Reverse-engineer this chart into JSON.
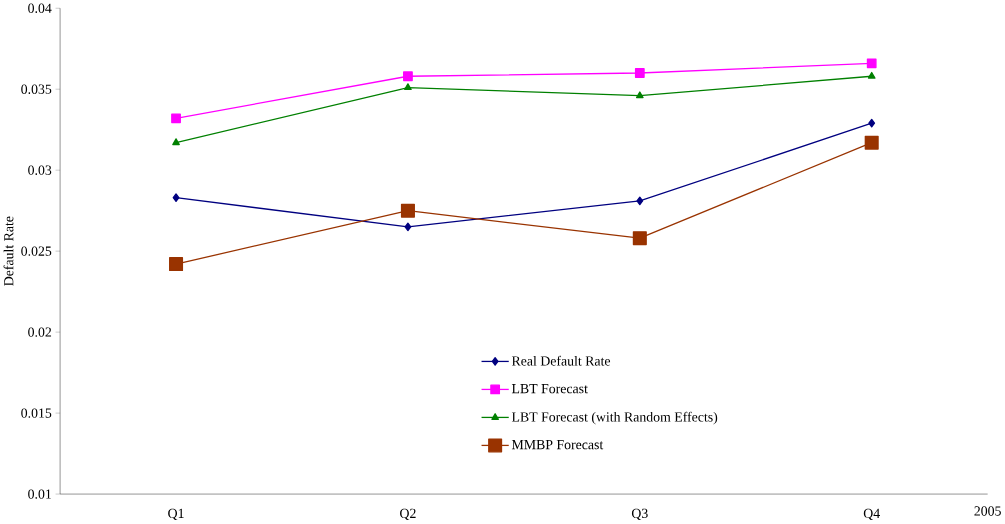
{
  "chart_data": {
    "type": "line",
    "ylabel": "Default Rate",
    "xlabel": "2005",
    "categories": [
      "Q1",
      "Q2",
      "Q3",
      "Q4"
    ],
    "series": [
      {
        "name": "Real Default Rate",
        "color": "#000080",
        "marker": "diamond",
        "values": [
          0.0283,
          0.0265,
          0.0281,
          0.0329
        ]
      },
      {
        "name": "LBT Forecast",
        "color": "#ff00ff",
        "marker": "square",
        "values": [
          0.0332,
          0.0358,
          0.036,
          0.0366
        ]
      },
      {
        "name": "LBT Forecast (with Random Effects)",
        "color": "#008000",
        "marker": "triangle",
        "values": [
          0.0317,
          0.0351,
          0.0346,
          0.0358
        ]
      },
      {
        "name": "MMBP Forecast",
        "color": "#993300",
        "marker": "square",
        "values": [
          0.0242,
          0.0275,
          0.0258,
          0.0317
        ]
      }
    ],
    "ylim": [
      0.01,
      0.04
    ],
    "yticks": [
      0.01,
      0.015,
      0.02,
      0.025,
      0.03,
      0.035,
      0.04
    ],
    "grid": false,
    "legend": "bottom",
    "line_style": "solid"
  }
}
